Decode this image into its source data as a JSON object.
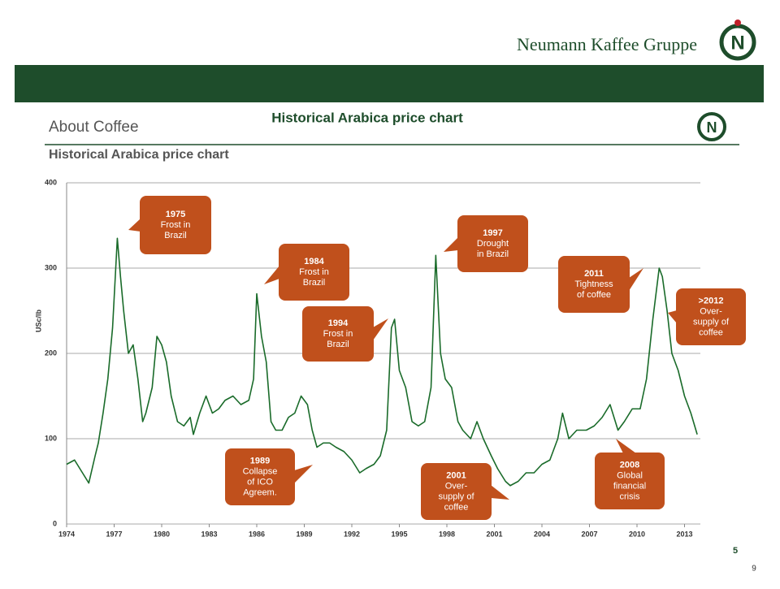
{
  "header": {
    "brand": "Neumann Kaffee Gruppe",
    "title": "Historical Arabica price chart"
  },
  "slide": {
    "section": "About Coffee",
    "subtitle": "Historical Arabica price chart",
    "number": "5"
  },
  "page_number": "9",
  "chart_data": {
    "type": "line",
    "y_label": "USc/lb",
    "x": [
      1974.0,
      1974.5,
      1975.0,
      1975.4,
      1975.8,
      1976.0,
      1976.3,
      1976.6,
      1976.9,
      1977.2,
      1977.4,
      1977.6,
      1977.9,
      1978.2,
      1978.5,
      1978.8,
      1979.0,
      1979.4,
      1979.7,
      1980.0,
      1980.3,
      1980.6,
      1981.0,
      1981.4,
      1981.8,
      1982.0,
      1982.4,
      1982.8,
      1983.2,
      1983.6,
      1984.0,
      1984.5,
      1985.0,
      1985.5,
      1985.8,
      1986.0,
      1986.3,
      1986.6,
      1986.9,
      1987.2,
      1987.6,
      1988.0,
      1988.4,
      1988.8,
      1989.2,
      1989.5,
      1989.8,
      1990.2,
      1990.6,
      1991.0,
      1991.5,
      1992.0,
      1992.5,
      1992.9,
      1993.4,
      1993.8,
      1994.2,
      1994.5,
      1994.7,
      1995.0,
      1995.4,
      1995.8,
      1996.2,
      1996.6,
      1997.0,
      1997.3,
      1997.6,
      1997.9,
      1998.3,
      1998.7,
      1999.0,
      1999.5,
      1999.9,
      2000.3,
      2000.8,
      2001.2,
      2001.7,
      2002.0,
      2002.5,
      2003.0,
      2003.5,
      2004.0,
      2004.5,
      2005.0,
      2005.3,
      2005.7,
      2006.2,
      2006.8,
      2007.3,
      2007.8,
      2008.3,
      2008.8,
      2009.2,
      2009.7,
      2010.2,
      2010.6,
      2011.0,
      2011.4,
      2011.6,
      2011.9,
      2012.2,
      2012.6,
      2013.0,
      2013.4,
      2013.8
    ],
    "series": [
      {
        "color": "#1a6b2a",
        "values": [
          70,
          75,
          60,
          48,
          80,
          95,
          130,
          170,
          230,
          335,
          290,
          250,
          200,
          210,
          170,
          120,
          130,
          160,
          220,
          210,
          190,
          150,
          120,
          115,
          125,
          105,
          130,
          150,
          130,
          135,
          145,
          150,
          140,
          145,
          170,
          270,
          220,
          190,
          120,
          110,
          110,
          125,
          130,
          150,
          140,
          110,
          90,
          95,
          95,
          90,
          85,
          75,
          60,
          65,
          70,
          80,
          110,
          230,
          240,
          180,
          160,
          120,
          115,
          120,
          160,
          315,
          200,
          170,
          160,
          120,
          110,
          100,
          120,
          100,
          80,
          65,
          50,
          45,
          50,
          60,
          60,
          70,
          75,
          100,
          130,
          100,
          110,
          110,
          115,
          125,
          140,
          110,
          120,
          135,
          135,
          170,
          240,
          300,
          290,
          250,
          200,
          180,
          150,
          130,
          105
        ]
      }
    ],
    "xlim": [
      1974,
      2014
    ],
    "xticks": [
      1974,
      1977,
      1980,
      1983,
      1986,
      1989,
      1992,
      1995,
      1998,
      2001,
      2004,
      2007,
      2010,
      2013
    ],
    "ylim": [
      0,
      400
    ],
    "yticks": [
      0,
      100,
      200,
      300,
      400
    ],
    "grid": true,
    "annotation_color": "#c0501c",
    "annotations": [
      {
        "lines": [
          "1975",
          "Frost in",
          "Brazil"
        ]
      },
      {
        "lines": [
          "1984",
          "Frost in",
          "Brazil"
        ]
      },
      {
        "lines": [
          "1994",
          "Frost in",
          "Brazil"
        ]
      },
      {
        "lines": [
          "1997",
          "Drought",
          "in Brazil"
        ]
      },
      {
        "lines": [
          "2011",
          "Tightness",
          "of coffee"
        ]
      },
      {
        "lines": [
          ">2012",
          "Over-",
          "supply of",
          "coffee"
        ]
      },
      {
        "lines": [
          "1989",
          "Collapse",
          "of ICO",
          "Agreem."
        ]
      },
      {
        "lines": [
          "2001",
          "Over-",
          "supply of",
          "coffee"
        ]
      },
      {
        "lines": [
          "2008",
          "Global",
          "financial",
          "crisis"
        ]
      }
    ]
  }
}
